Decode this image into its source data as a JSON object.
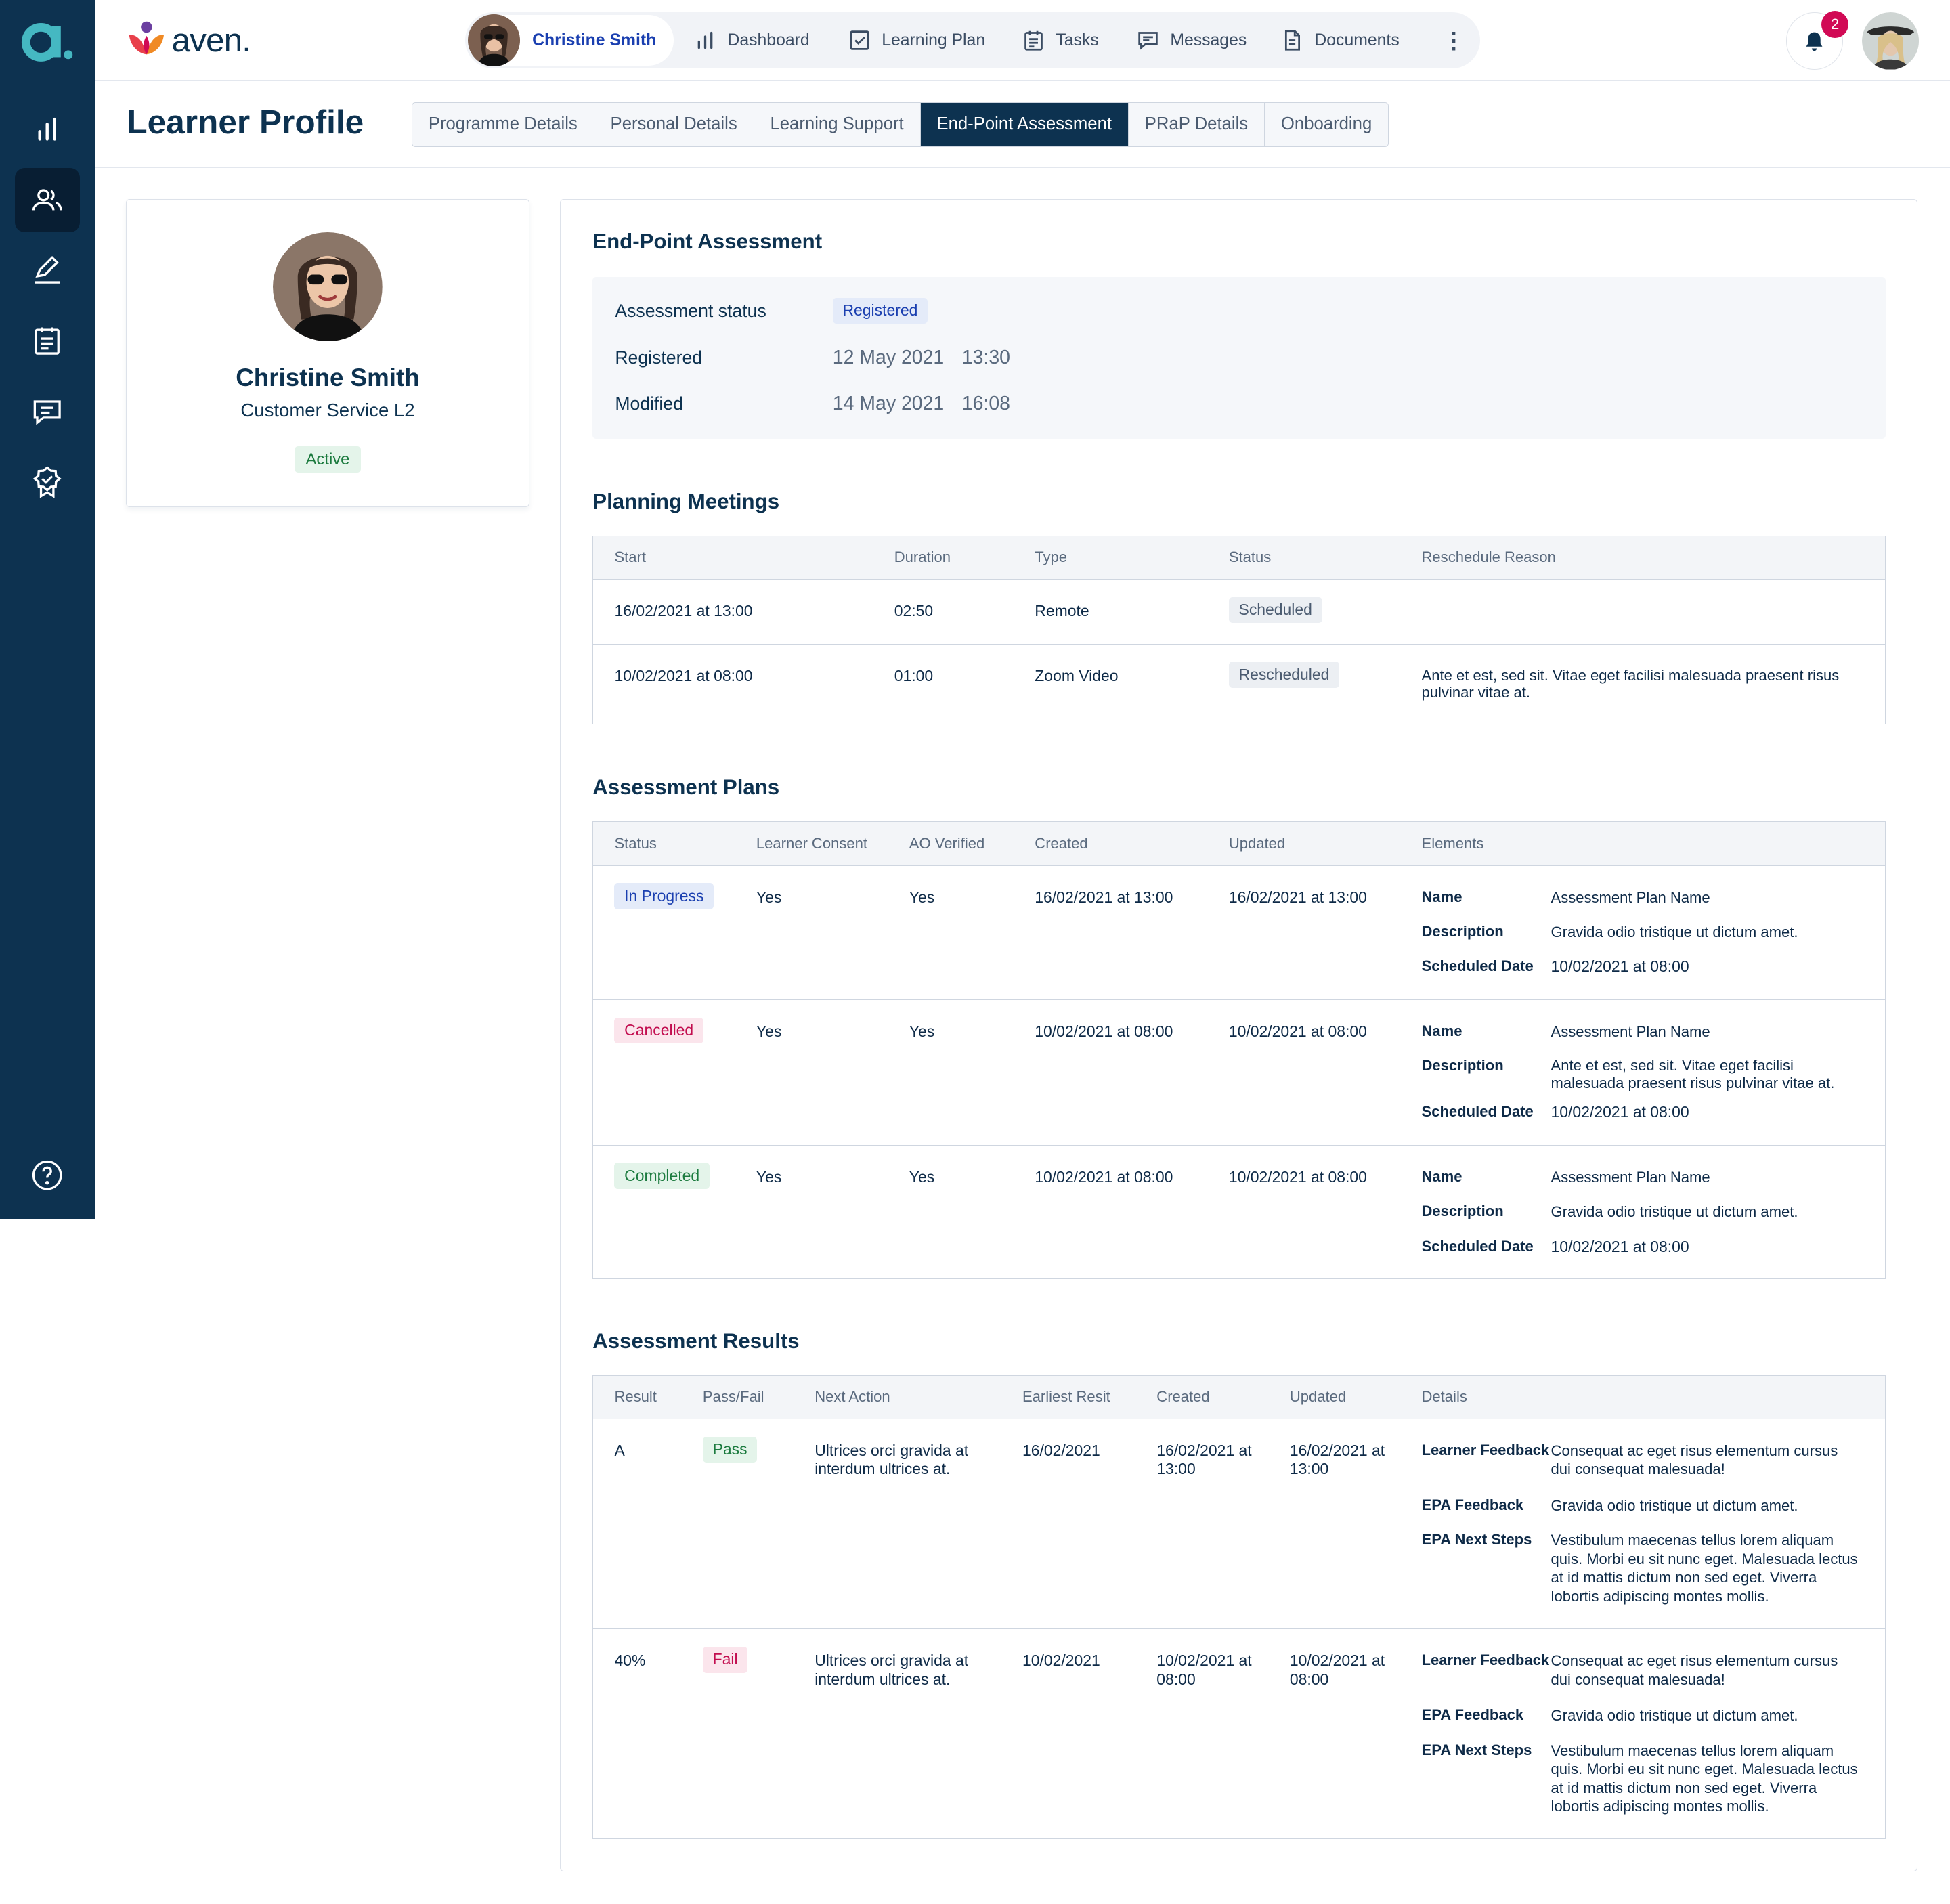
{
  "rail": {
    "items": [
      "chart-icon",
      "learners-icon",
      "edit-icon",
      "tasks-icon",
      "messages-icon",
      "award-icon"
    ],
    "help_icon": "help-icon"
  },
  "brand": {
    "name": "aven."
  },
  "nav": {
    "user_name": "Christine Smith",
    "items": [
      {
        "label": "Dashboard",
        "icon": "bar-chart-icon"
      },
      {
        "label": "Learning Plan",
        "icon": "checkbox-icon"
      },
      {
        "label": "Tasks",
        "icon": "clipboard-icon"
      },
      {
        "label": "Messages",
        "icon": "chat-icon"
      },
      {
        "label": "Documents",
        "icon": "document-icon"
      }
    ],
    "more_icon": "kebab-icon",
    "notification_count": "2"
  },
  "page": {
    "title": "Learner Profile",
    "tabs": [
      "Programme Details",
      "Personal Details",
      "Learning Support",
      "End-Point Assessment",
      "PRaP Details",
      "Onboarding"
    ],
    "active_tab": "End-Point Assessment"
  },
  "profile": {
    "name": "Christine Smith",
    "programme": "Customer Service L2",
    "status": "Active"
  },
  "epa": {
    "title": "End-Point Assessment",
    "status_label": "Assessment status",
    "status_value": "Registered",
    "registered_label": "Registered",
    "registered_date": "12 May 2021",
    "registered_time": "13:30",
    "modified_label": "Modified",
    "modified_date": "14 May 2021",
    "modified_time": "16:08"
  },
  "planning": {
    "title": "Planning Meetings",
    "headers": [
      "Start",
      "Duration",
      "Type",
      "Status",
      "Reschedule Reason"
    ],
    "rows": [
      {
        "start": "16/02/2021 at 13:00",
        "duration": "02:50",
        "type": "Remote",
        "status": "Scheduled",
        "reason": ""
      },
      {
        "start": "10/02/2021 at 08:00",
        "duration": "01:00",
        "type": "Zoom Video",
        "status": "Rescheduled",
        "reason": "Ante et est, sed sit. Vitae eget facilisi malesuada praesent risus pulvinar vitae at."
      }
    ]
  },
  "plans": {
    "title": "Assessment Plans",
    "headers": [
      "Status",
      "Learner Consent",
      "AO Verified",
      "Created",
      "Updated",
      "Elements"
    ],
    "element_labels": {
      "name": "Name",
      "description": "Description",
      "scheduled": "Scheduled Date"
    },
    "rows": [
      {
        "status": "In Progress",
        "consent": "Yes",
        "verified": "Yes",
        "created": "16/02/2021 at 13:00",
        "updated": "16/02/2021 at 13:00",
        "name": "Assessment Plan Name",
        "description": "Gravida odio tristique ut dictum amet.",
        "scheduled": "10/02/2021 at 08:00"
      },
      {
        "status": "Cancelled",
        "consent": "Yes",
        "verified": "Yes",
        "created": "10/02/2021 at 08:00",
        "updated": "10/02/2021 at 08:00",
        "name": "Assessment Plan Name",
        "description": "Ante et est, sed sit. Vitae eget facilisi malesuada praesent risus pulvinar vitae at.",
        "scheduled": "10/02/2021 at 08:00"
      },
      {
        "status": "Completed",
        "consent": "Yes",
        "verified": "Yes",
        "created": "10/02/2021 at 08:00",
        "updated": "10/02/2021 at 08:00",
        "name": "Assessment Plan Name",
        "description": "Gravida odio tristique ut dictum amet.",
        "scheduled": "10/02/2021 at 08:00"
      }
    ]
  },
  "results": {
    "title": "Assessment Results",
    "headers": [
      "Result",
      "Pass/Fail",
      "Next Action",
      "Earliest Resit",
      "Created",
      "Updated",
      "Details"
    ],
    "detail_labels": {
      "learner": "Learner Feedback",
      "epa": "EPA Feedback",
      "next": "EPA Next Steps"
    },
    "rows": [
      {
        "result": "A",
        "passfail": "Pass",
        "next_action": "Ultrices orci gravida at interdum ultrices at.",
        "resit": "16/02/2021",
        "created": "16/02/2021 at 13:00",
        "updated": "16/02/2021 at 13:00",
        "learner_feedback": "Consequat ac eget risus elementum cursus dui consequat malesuada!",
        "epa_feedback": "Gravida odio tristique ut dictum amet.",
        "epa_next": "Vestibulum maecenas tellus lorem aliquam quis. Morbi eu sit nunc eget. Malesuada lectus at id mattis dictum non sed eget. Viverra lobortis adipiscing montes mollis."
      },
      {
        "result": "40%",
        "passfail": "Fail",
        "next_action": "Ultrices orci gravida at interdum ultrices at.",
        "resit": "10/02/2021",
        "created": "10/02/2021 at 08:00",
        "updated": "10/02/2021 at 08:00",
        "learner_feedback": "Consequat ac eget risus elementum cursus dui consequat malesuada!",
        "epa_feedback": "Gravida odio tristique ut dictum amet.",
        "epa_next": "Vestibulum maecenas tellus lorem aliquam quis. Morbi eu sit nunc eget. Malesuada lectus at id mattis dictum non sed eget. Viverra lobortis adipiscing montes mollis."
      }
    ]
  },
  "colors": {
    "navy": "#0d3250",
    "rail_active": "#081e33",
    "accent_blue": "#1a3fb0",
    "badge_red": "#d10a55",
    "teal_logo": "#45b8c2"
  }
}
